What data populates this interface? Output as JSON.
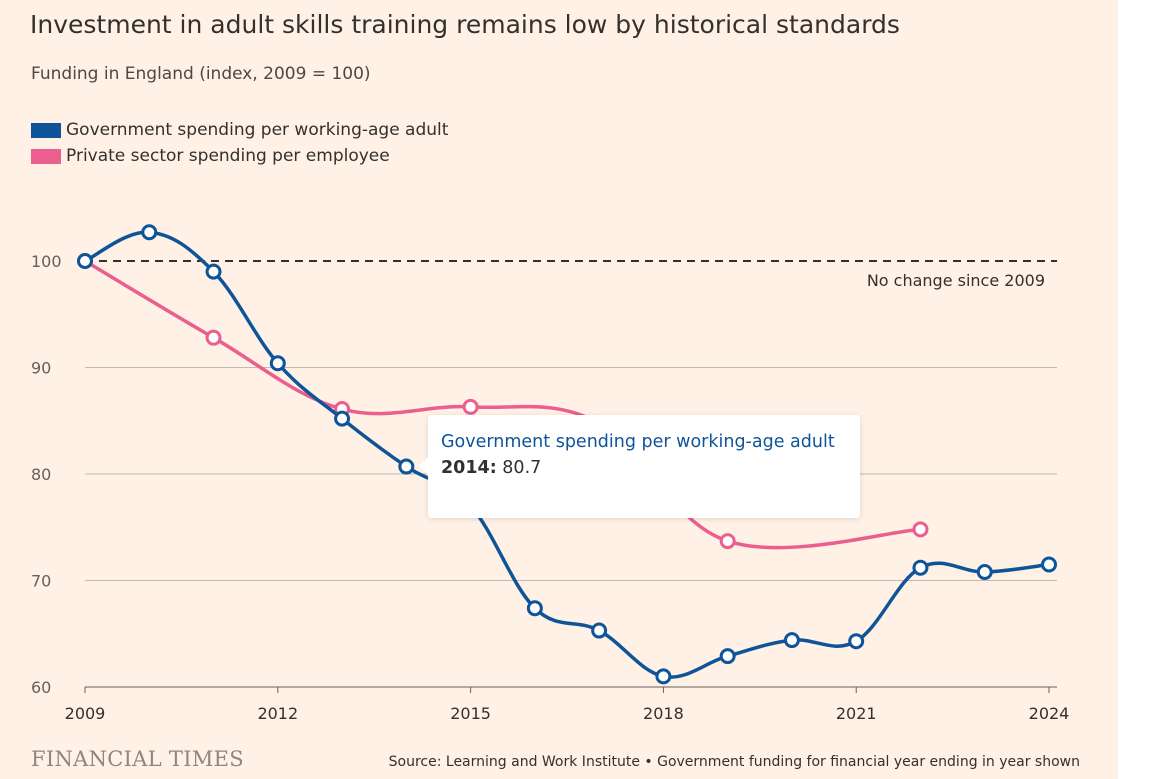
{
  "title": "Investment in adult skills training remains low by historical standards",
  "subtitle": "Funding in England (index, 2009 = 100)",
  "colors": {
    "background": "#fff1e5",
    "government": "#0f5499",
    "private": "#eb5e8d",
    "grid": "#c2b9b1",
    "reference": "#33302e"
  },
  "chart_data": {
    "type": "line",
    "x_ticks": [
      2009,
      2012,
      2015,
      2018,
      2021,
      2024
    ],
    "y_ticks": [
      60,
      70,
      80,
      90,
      100
    ],
    "xlim": [
      2009,
      2024
    ],
    "ylim": [
      60,
      100
    ],
    "grid": true,
    "legend_position": "top-left",
    "reference_line": {
      "value": 100,
      "label": "No change since 2009"
    },
    "series": [
      {
        "name": "Government spending per working-age adult",
        "color": "#0f5499",
        "x": [
          2009,
          2010,
          2011,
          2012,
          2013,
          2014,
          2015,
          2016,
          2017,
          2018,
          2019,
          2020,
          2021,
          2022,
          2023,
          2024
        ],
        "y": [
          100,
          102.7,
          99,
          90.4,
          85.2,
          80.7,
          77,
          67.4,
          65.3,
          61,
          62.9,
          64.4,
          64.3,
          71.2,
          70.8,
          71.5
        ]
      },
      {
        "name": "Private sector spending per employee",
        "color": "#eb5e8d",
        "x": [
          2009,
          2011,
          2013,
          2015,
          2017,
          2019,
          2022
        ],
        "y": [
          100,
          92.8,
          86.1,
          86.3,
          84.8,
          73.7,
          74.8
        ]
      }
    ]
  },
  "tooltip": {
    "series": "Government spending per working-age adult",
    "year": "2014:",
    "value": "80.7"
  },
  "footer": {
    "brand": "FINANCIAL TIMES",
    "source": "Source: Learning and Work Institute • Government funding for financial year ending in year shown"
  }
}
